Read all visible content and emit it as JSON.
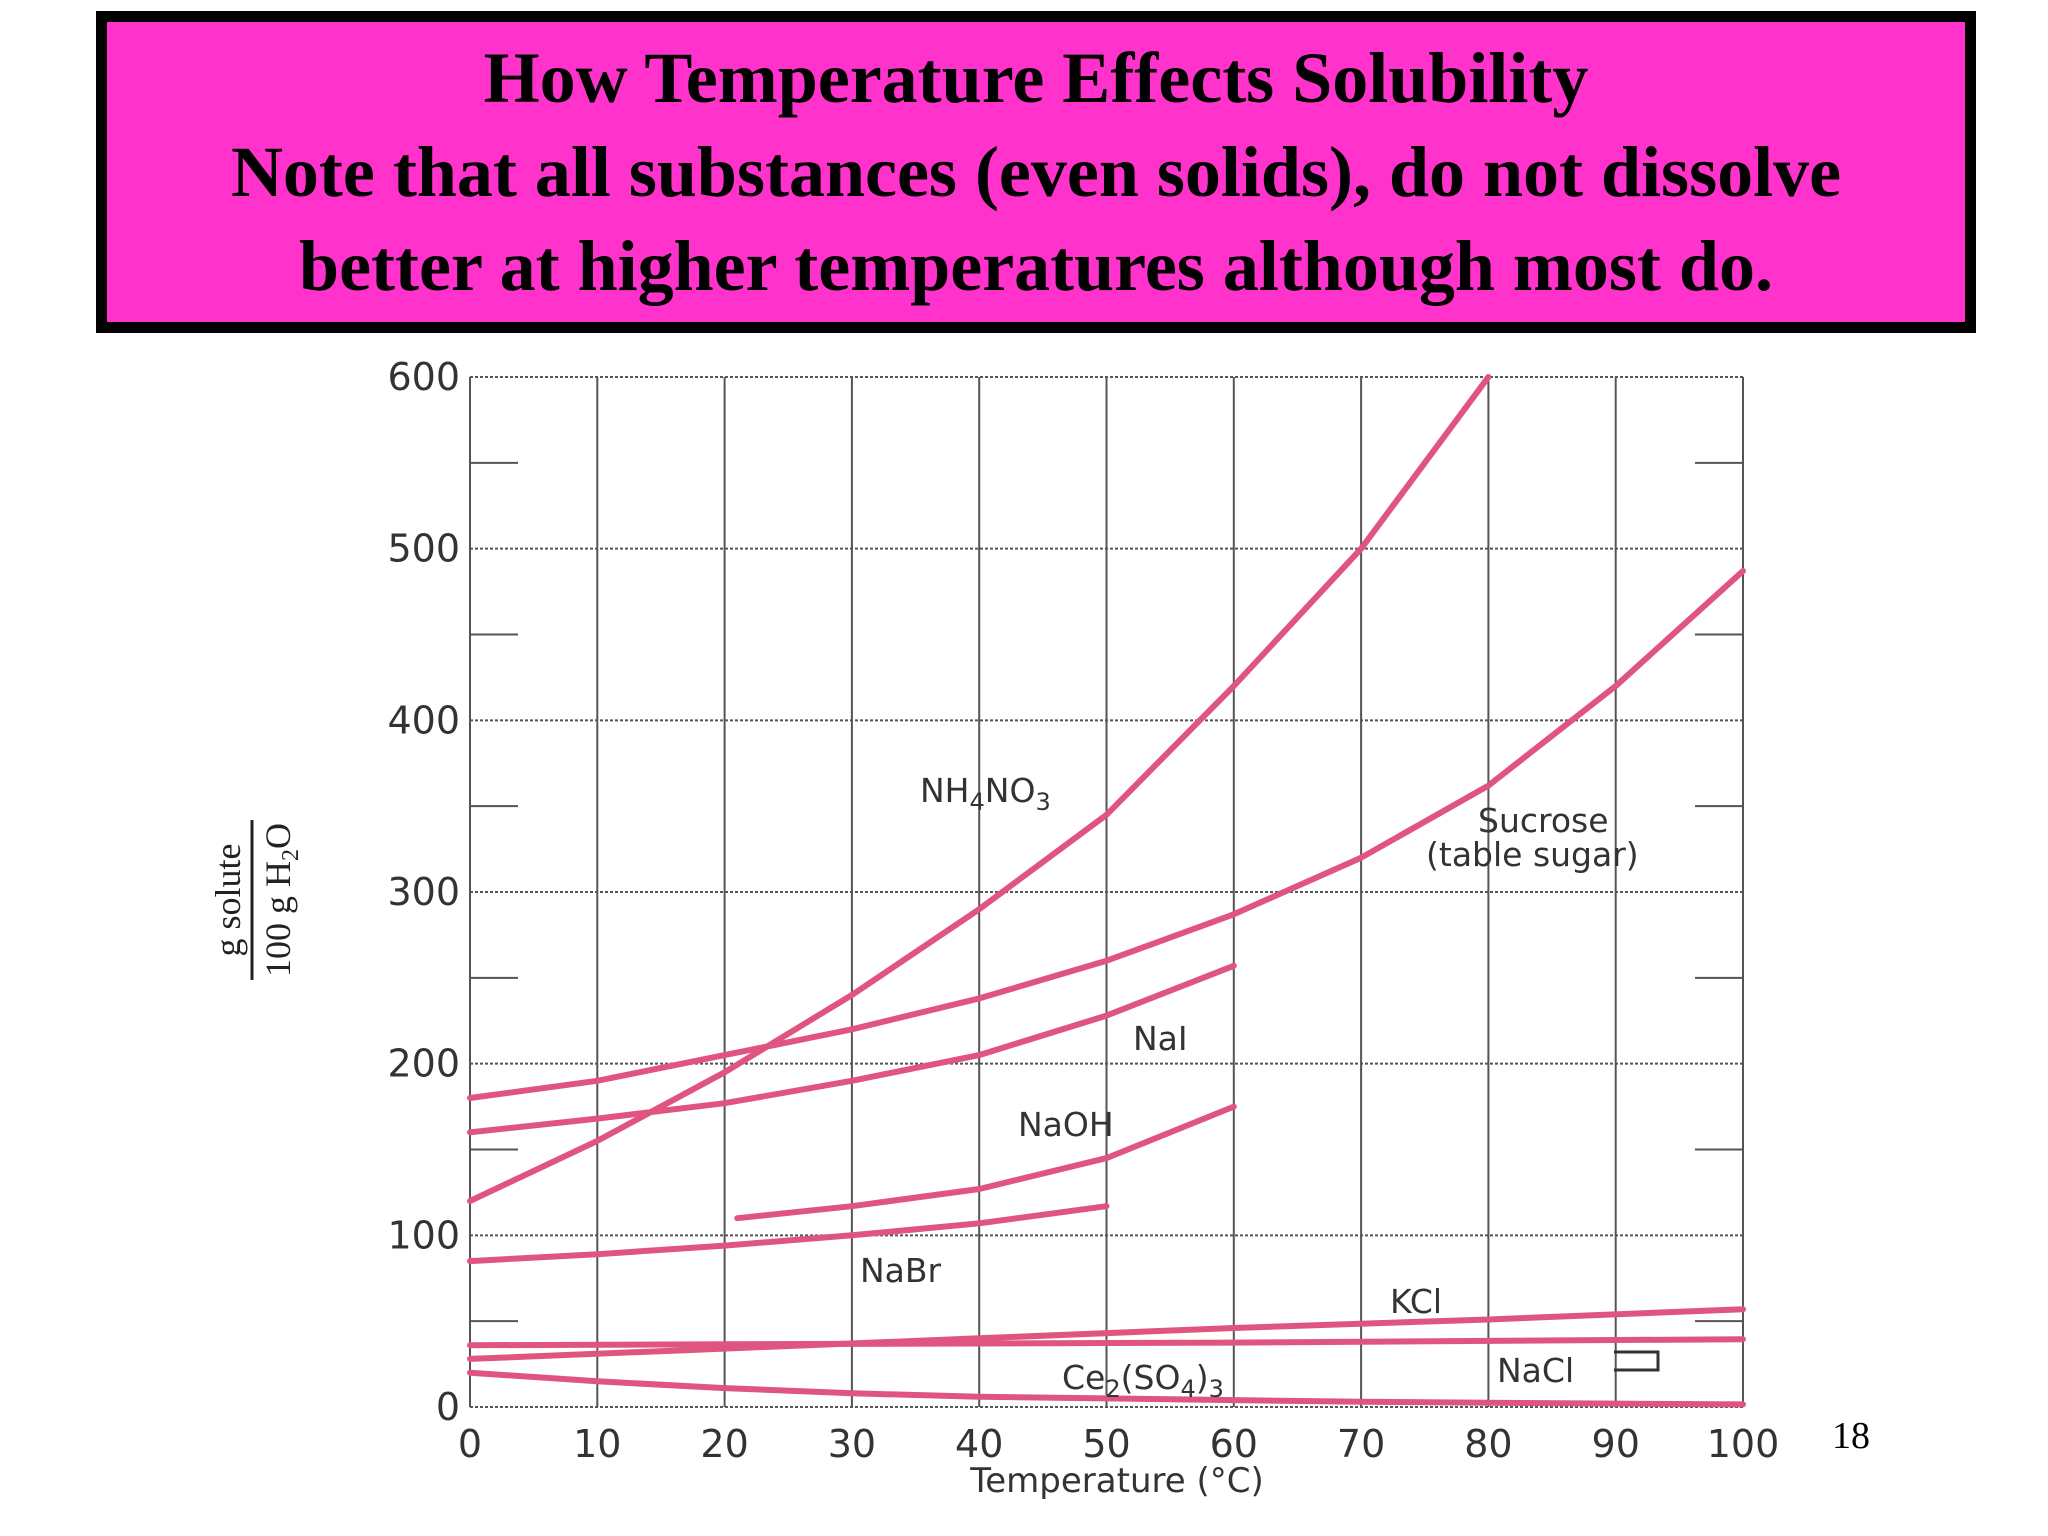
{
  "slide": {
    "title_lines": [
      "How Temperature Effects Solubility",
      "Note that all substances (even solids), do not dissolve",
      "better at higher temperatures although most do."
    ],
    "page_number": "18",
    "title_background": "#ff33cc",
    "title_border": "#000000"
  },
  "chart_data": {
    "type": "line",
    "title": "",
    "xlabel": "Temperature (°C)",
    "ylabel": {
      "numerator": "g solute",
      "denominator": "100 g H2O"
    },
    "xlim": [
      0,
      100
    ],
    "ylim": [
      0,
      600
    ],
    "x_ticks": [
      0,
      10,
      20,
      30,
      40,
      50,
      60,
      70,
      80,
      90,
      100
    ],
    "y_ticks": [
      0,
      100,
      200,
      300,
      400,
      500,
      600
    ],
    "grid": true,
    "line_color": "#e0557f",
    "series": [
      {
        "name": "NH4NO3",
        "points": [
          [
            0,
            120
          ],
          [
            10,
            155
          ],
          [
            20,
            195
          ],
          [
            30,
            240
          ],
          [
            40,
            290
          ],
          [
            50,
            345
          ],
          [
            60,
            420
          ],
          [
            70,
            500
          ],
          [
            80,
            600
          ]
        ]
      },
      {
        "name": "Sucrose (table sugar)",
        "points": [
          [
            0,
            180
          ],
          [
            10,
            190
          ],
          [
            20,
            205
          ],
          [
            30,
            220
          ],
          [
            40,
            238
          ],
          [
            50,
            260
          ],
          [
            60,
            287
          ],
          [
            70,
            320
          ],
          [
            80,
            362
          ],
          [
            90,
            420
          ],
          [
            100,
            487
          ]
        ]
      },
      {
        "name": "NaI",
        "points": [
          [
            0,
            160
          ],
          [
            10,
            168
          ],
          [
            20,
            177
          ],
          [
            30,
            190
          ],
          [
            40,
            205
          ],
          [
            50,
            228
          ],
          [
            60,
            257
          ]
        ]
      },
      {
        "name": "NaOH",
        "points": [
          [
            21,
            110
          ],
          [
            30,
            117
          ],
          [
            40,
            127
          ],
          [
            50,
            145
          ],
          [
            60,
            175
          ]
        ]
      },
      {
        "name": "NaBr",
        "points": [
          [
            0,
            85
          ],
          [
            10,
            89
          ],
          [
            20,
            94
          ],
          [
            30,
            100
          ],
          [
            40,
            107
          ],
          [
            50,
            117
          ]
        ]
      },
      {
        "name": "KCl",
        "points": [
          [
            0,
            28
          ],
          [
            20,
            34
          ],
          [
            40,
            40
          ],
          [
            60,
            46
          ],
          [
            80,
            51
          ],
          [
            100,
            57
          ]
        ]
      },
      {
        "name": "NaCl",
        "points": [
          [
            0,
            36
          ],
          [
            20,
            36.5
          ],
          [
            40,
            37
          ],
          [
            60,
            37.5
          ],
          [
            80,
            38.5
          ],
          [
            100,
            39.5
          ]
        ]
      },
      {
        "name": "Ce2(SO4)3",
        "points": [
          [
            0,
            20
          ],
          [
            10,
            15
          ],
          [
            20,
            11
          ],
          [
            30,
            8
          ],
          [
            40,
            6
          ],
          [
            50,
            5
          ],
          [
            60,
            4
          ],
          [
            70,
            3
          ],
          [
            80,
            2.5
          ],
          [
            90,
            2
          ],
          [
            100,
            1.5
          ]
        ]
      }
    ],
    "labels": {
      "NH4NO3": {
        "base": "NH",
        "sub1": "4",
        "mid": "NO",
        "sub2": "3"
      },
      "sucrose_line1": "Sucrose",
      "sucrose_line2": "(table sugar)",
      "NaI": "NaI",
      "NaOH": "NaOH",
      "NaBr": "NaBr",
      "KCl": "KCl",
      "NaCl": "NaCl",
      "Ce2SO43": {
        "a": "Ce",
        "s1": "2",
        "b": "(SO",
        "s2": "4",
        "c": ")",
        "s3": "3"
      }
    }
  }
}
